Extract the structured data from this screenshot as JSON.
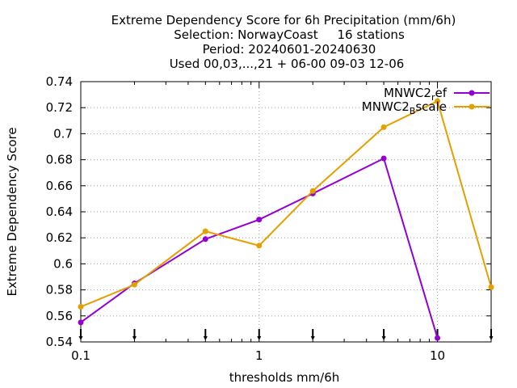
{
  "chart_data": {
    "type": "line",
    "title_lines": [
      "Extreme Dependency Score  for 6h Precipitation (mm/6h)",
      "Selection: NorwayCoast     16 stations",
      "Period: 20240601-20240630",
      "Used 00,03,...,21 + 06-00 09-03 12-06"
    ],
    "xlabel": "thresholds mm/6h",
    "ylabel": "Extreme Dependency Score",
    "x_scale": "log",
    "xlim": [
      0.1,
      20
    ],
    "ylim": [
      0.54,
      0.74
    ],
    "x_ticks": [
      0.1,
      1,
      10
    ],
    "x_tick_labels": [
      "0.1",
      "1",
      "10"
    ],
    "y_ticks": [
      0.54,
      0.56,
      0.58,
      0.6,
      0.62,
      0.64,
      0.66,
      0.68,
      0.7,
      0.72,
      0.74
    ],
    "y_tick_labels": [
      "0.54",
      "0.56",
      "0.58",
      "0.6",
      "0.62",
      "0.64",
      "0.66",
      "0.68",
      "0.7",
      "0.72",
      "0.74"
    ],
    "grid": true,
    "legend_position": "top-right",
    "threshold_markers_x": [
      0.1,
      0.2,
      0.5,
      1,
      2,
      5,
      10,
      20
    ],
    "series": [
      {
        "legend_main": "MNWC2",
        "legend_sub": "r",
        "legend_tail": "ef",
        "color": "#9400d3",
        "x": [
          0.1,
          0.2,
          0.5,
          1,
          2,
          5,
          10
        ],
        "y": [
          0.555,
          0.585,
          0.619,
          0.634,
          0.654,
          0.681,
          0.543
        ]
      },
      {
        "legend_main": "MNWC2",
        "legend_sub": "B",
        "legend_tail": "scale",
        "color": "#e69f00",
        "x": [
          0.1,
          0.2,
          0.5,
          1,
          2,
          5,
          10,
          20
        ],
        "y": [
          0.567,
          0.584,
          0.625,
          0.614,
          0.656,
          0.705,
          0.725,
          0.582
        ]
      }
    ]
  }
}
